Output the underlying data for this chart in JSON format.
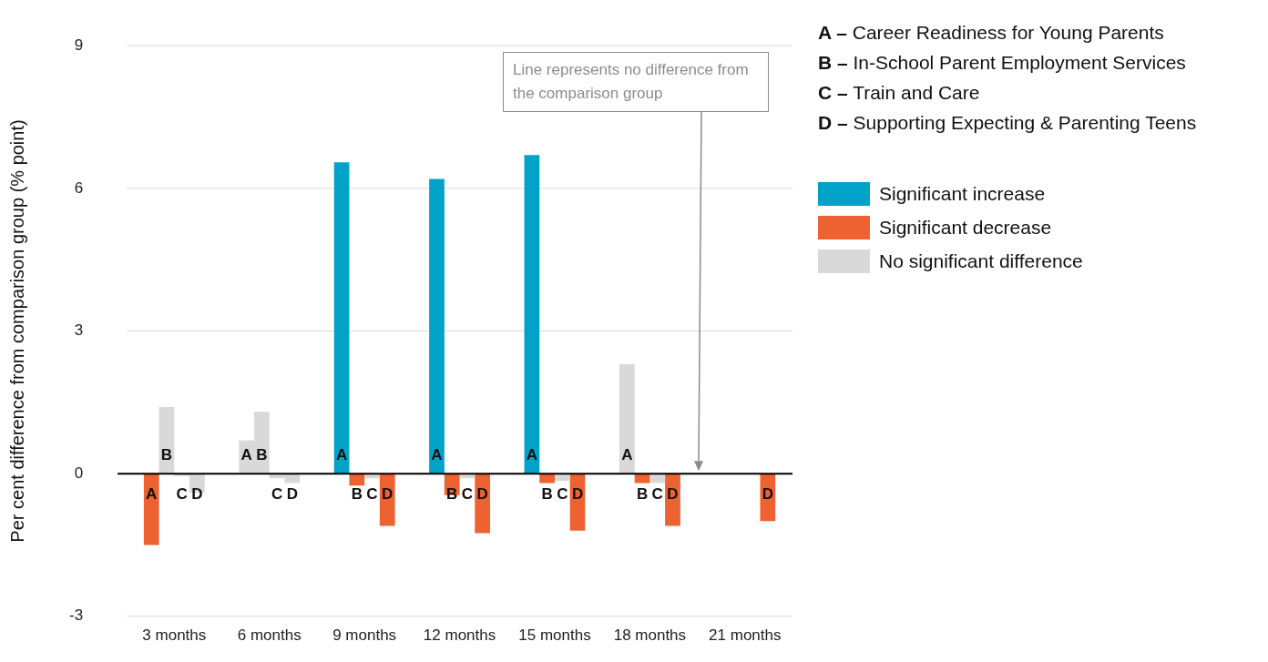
{
  "chart_data": {
    "type": "bar",
    "ylabel": "Per cent difference from comparison group (% point)",
    "categories": [
      "3 months",
      "6 months",
      "9 months",
      "12 months",
      "15 months",
      "18 months",
      "21 months"
    ],
    "series": [
      {
        "name": "A",
        "colors": [
          "#ee6130",
          "#d9d9d9",
          "#00a3c7",
          "#00a3c7",
          "#00a3c7",
          "#d9d9d9",
          null
        ],
        "values": [
          -1.5,
          0.7,
          6.55,
          6.2,
          6.7,
          2.3,
          null
        ]
      },
      {
        "name": "B",
        "colors": [
          "#d9d9d9",
          "#d9d9d9",
          "#ee6130",
          "#ee6130",
          "#ee6130",
          "#ee6130",
          null
        ],
        "values": [
          1.4,
          1.3,
          -0.25,
          -0.45,
          -0.2,
          -0.2,
          null
        ]
      },
      {
        "name": "C",
        "colors": [
          "#d9d9d9",
          "#d9d9d9",
          "#d9d9d9",
          "#d9d9d9",
          "#d9d9d9",
          "#d9d9d9",
          null
        ],
        "values": [
          -0.05,
          -0.1,
          -0.1,
          -0.1,
          -0.15,
          -0.2,
          null
        ]
      },
      {
        "name": "D",
        "colors": [
          "#d9d9d9",
          "#d9d9d9",
          "#ee6130",
          "#ee6130",
          "#ee6130",
          "#ee6130",
          "#ee6130"
        ],
        "values": [
          -0.4,
          -0.2,
          -1.1,
          -1.25,
          -1.2,
          -1.1,
          -1.0
        ]
      }
    ],
    "ylim": [
      -3,
      9
    ],
    "yticks": [
      -3,
      0,
      3,
      6,
      9
    ],
    "grid": "y",
    "legend": "right",
    "ref_lines": [
      {
        "axis": "y",
        "value": 0,
        "color": "#000000"
      }
    ],
    "annotations": [
      "A – Career Readiness for Young Parents",
      "B – In-School Parent Employment Services",
      "C – Train and Care",
      "D – Supporting Expecting & Parenting Teens",
      "Significant increase",
      "Significant decrease",
      "No significant difference",
      "Line represents no difference from the comparison group"
    ]
  }
}
